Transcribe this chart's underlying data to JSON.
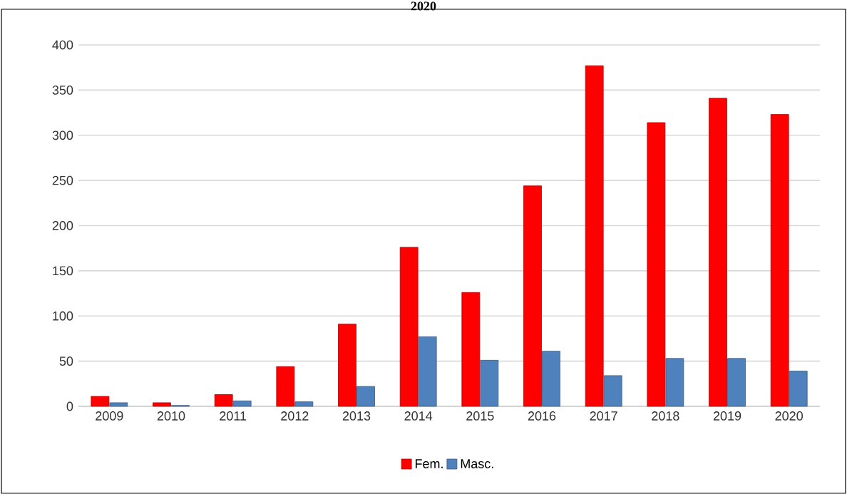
{
  "chart_data": {
    "type": "bar",
    "title": "2020",
    "categories": [
      "2009",
      "2010",
      "2011",
      "2012",
      "2013",
      "2014",
      "2015",
      "2016",
      "2017",
      "2018",
      "2019",
      "2020"
    ],
    "series": [
      {
        "name": "Fem.",
        "color": "#ff0000",
        "values": [
          11,
          4,
          13,
          44,
          91,
          176,
          126,
          244,
          377,
          314,
          341,
          323
        ]
      },
      {
        "name": "Masc.",
        "color": "#4f81bd",
        "values": [
          4,
          1,
          6,
          5,
          22,
          77,
          51,
          61,
          34,
          53,
          53,
          39
        ]
      }
    ],
    "ylim": [
      0,
      400
    ],
    "yticks": [
      0,
      50,
      100,
      150,
      200,
      250,
      300,
      350,
      400
    ],
    "grid": "y",
    "legend": "bottom"
  }
}
